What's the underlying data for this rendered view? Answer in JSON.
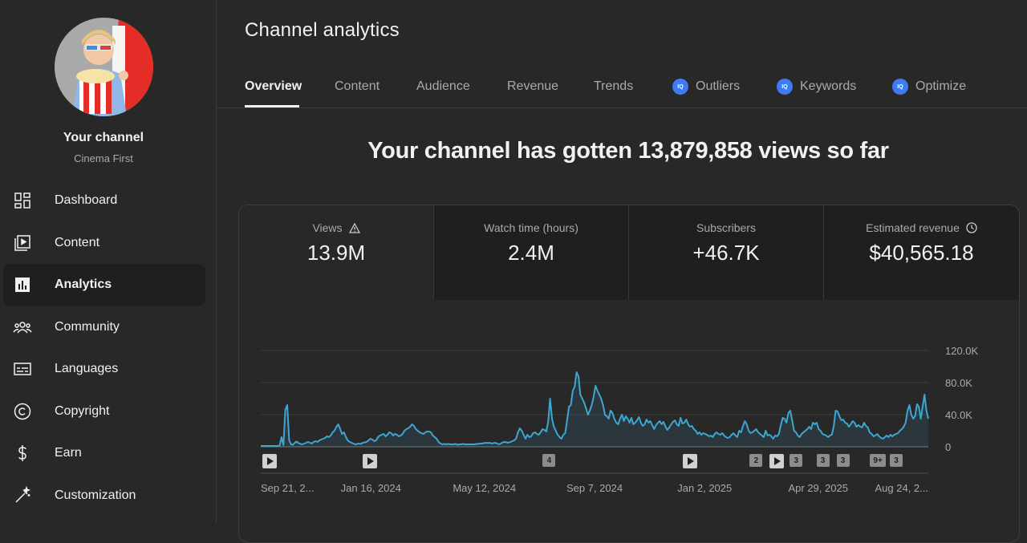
{
  "sidebar": {
    "channel_title": "Your channel",
    "channel_subtitle": "Cinema First",
    "items": [
      {
        "label": "Dashboard",
        "icon": "dashboard-icon"
      },
      {
        "label": "Content",
        "icon": "content-icon"
      },
      {
        "label": "Analytics",
        "icon": "analytics-icon",
        "active": true
      },
      {
        "label": "Community",
        "icon": "community-icon"
      },
      {
        "label": "Languages",
        "icon": "languages-icon"
      },
      {
        "label": "Copyright",
        "icon": "copyright-icon"
      },
      {
        "label": "Earn",
        "icon": "earn-icon"
      },
      {
        "label": "Customization",
        "icon": "customization-icon"
      }
    ]
  },
  "header": {
    "title": "Channel analytics"
  },
  "tabs": [
    {
      "label": "Overview",
      "active": true
    },
    {
      "label": "Content"
    },
    {
      "label": "Audience"
    },
    {
      "label": "Revenue"
    },
    {
      "label": "Trends"
    },
    {
      "label": "Outliers",
      "icon": "iq"
    },
    {
      "label": "Keywords",
      "icon": "iq"
    },
    {
      "label": "Optimize",
      "icon": "iq"
    }
  ],
  "iq_badge": "IQ",
  "headline": "Your channel has gotten 13,879,858 views so far",
  "metrics": [
    {
      "label": "Views",
      "value": "13.9M",
      "icon": "warning-icon"
    },
    {
      "label": "Watch time (hours)",
      "value": "2.4M"
    },
    {
      "label": "Subscribers",
      "value": "+46.7K"
    },
    {
      "label": "Estimated revenue",
      "value": "$40,565.18",
      "icon": "clock-icon"
    }
  ],
  "colors": {
    "accent": "#3ea6d2",
    "iq_blue": "#3e7bf2",
    "background": "#282828"
  },
  "chart_data": {
    "type": "line",
    "series": [
      {
        "values": [
          1000,
          1000,
          1000,
          1000,
          1000,
          1000,
          1000,
          1000,
          1000,
          1000,
          1500,
          12000,
          2000,
          46000,
          52000,
          8000,
          3000,
          2500,
          5000,
          6500,
          4500,
          3500,
          3000,
          4000,
          5000,
          6000,
          5000,
          4000,
          6000,
          7000,
          6000,
          8000,
          9000,
          10000,
          11000,
          13000,
          12000,
          14000,
          18000,
          20000,
          25000,
          28000,
          22000,
          16000,
          18000,
          12000,
          8000,
          6000,
          5000,
          4000,
          3000,
          3500,
          4000,
          3500,
          5000,
          5500,
          6000,
          8000,
          10000,
          9000,
          7000,
          8000,
          12000,
          14000,
          15000,
          16000,
          13000,
          15000,
          18000,
          17000,
          14000,
          16000,
          15000,
          13000,
          14000,
          16000,
          20000,
          22000,
          23000,
          25000,
          28000,
          26000,
          22000,
          20000,
          18000,
          17000,
          16000,
          18000,
          19000,
          19000,
          18000,
          14000,
          12000,
          10000,
          6000,
          4000,
          3000,
          3500,
          3000,
          3500,
          3000,
          3000,
          3000,
          3500,
          2500,
          3000,
          3000,
          3500,
          3000,
          3000,
          3000,
          3000,
          3000,
          3000,
          3500,
          3500,
          4000,
          4000,
          4500,
          5000,
          4500,
          5000,
          4000,
          4500,
          5000,
          4000,
          3000,
          4000,
          5500,
          6000,
          5500,
          5000,
          6000,
          7000,
          8000,
          10000,
          18000,
          23000,
          20000,
          15000,
          10000,
          15000,
          12000,
          13000,
          17000,
          18000,
          16000,
          15000,
          18000,
          22000,
          21000,
          19000,
          32000,
          60000,
          35000,
          25000,
          20000,
          15000,
          12000,
          10000,
          15000,
          17000,
          33000,
          50000,
          52000,
          70000,
          75000,
          93000,
          88000,
          65000,
          60000,
          55000,
          48000,
          40000,
          45000,
          52000,
          62000,
          76000,
          70000,
          65000,
          60000,
          52000,
          40000,
          38000,
          35000,
          45000,
          42000,
          35000,
          30000,
          28000,
          35000,
          40000,
          32000,
          38000,
          35000,
          30000,
          36000,
          28000,
          30000,
          33000,
          37000,
          30000,
          26000,
          28000,
          34000,
          30000,
          32000,
          27000,
          22000,
          27000,
          30000,
          32000,
          28000,
          31000,
          25000,
          21000,
          24000,
          28000,
          31000,
          33000,
          28000,
          26000,
          36000,
          29000,
          30000,
          34000,
          28000,
          25000,
          26000,
          22000,
          20000,
          16000,
          18000,
          15000,
          17000,
          16000,
          15000,
          13000,
          14000,
          12000,
          16000,
          18000,
          16000,
          15000,
          17000,
          14000,
          12000,
          11000,
          12000,
          15000,
          17000,
          14000,
          12000,
          20000,
          18000,
          26000,
          32000,
          28000,
          20000,
          17000,
          18000,
          20000,
          22000,
          18000,
          16000,
          14000,
          12000,
          20000,
          14000,
          15000,
          13000,
          10000,
          14000,
          13000,
          16000,
          27000,
          36000,
          35000,
          30000,
          42000,
          45000,
          33000,
          20000,
          18000,
          14000,
          12000,
          16000,
          18000,
          20000,
          22000,
          25000,
          22000,
          30000,
          28000,
          30000,
          22000,
          20000,
          16000,
          15000,
          14000,
          12000,
          14000,
          15000,
          26000,
          45000,
          44000,
          38000,
          33000,
          34000,
          30000,
          29000,
          25000,
          28000,
          32000,
          30000,
          25000,
          27000,
          25000,
          24000,
          30000,
          26000,
          24000,
          18000,
          16000,
          13000,
          14000,
          16000,
          13000,
          11000,
          10000,
          12000,
          14000,
          12000,
          15000,
          13000,
          15000,
          16000,
          17000,
          20000,
          22000,
          25000,
          30000,
          45000,
          52000,
          40000,
          35000,
          38000,
          53000,
          50000,
          35000,
          50000,
          65000,
          45000,
          35000
        ]
      }
    ],
    "xtick_labels": [
      "Sep 21, 2...",
      "Jan 16, 2024",
      "May 12, 2024",
      "Sep 7, 2024",
      "Jan 2, 2025",
      "Apr 29, 2025",
      "Aug 24, 2..."
    ],
    "ytick_labels": [
      "0",
      "40.0K",
      "80.0K",
      "120.0K"
    ],
    "yticks": [
      0,
      40000,
      80000,
      120000
    ],
    "ylim": [
      0,
      120000
    ],
    "grid": true,
    "markers": [
      {
        "label": "",
        "kind": "play",
        "pos": 0.0
      },
      {
        "label": "",
        "kind": "play",
        "pos": 0.15
      },
      {
        "label": "4",
        "kind": "count",
        "pos": 0.42
      },
      {
        "label": "",
        "kind": "play",
        "pos": 0.63
      },
      {
        "label": "2",
        "kind": "count",
        "pos": 0.73
      },
      {
        "label": "",
        "kind": "play",
        "pos": 0.76
      },
      {
        "label": "3",
        "kind": "count",
        "pos": 0.79
      },
      {
        "label": "3",
        "kind": "count",
        "pos": 0.83
      },
      {
        "label": "3",
        "kind": "count",
        "pos": 0.86
      },
      {
        "label": "9+",
        "kind": "count",
        "pos": 0.91
      },
      {
        "label": "3",
        "kind": "count",
        "pos": 0.94
      }
    ]
  }
}
